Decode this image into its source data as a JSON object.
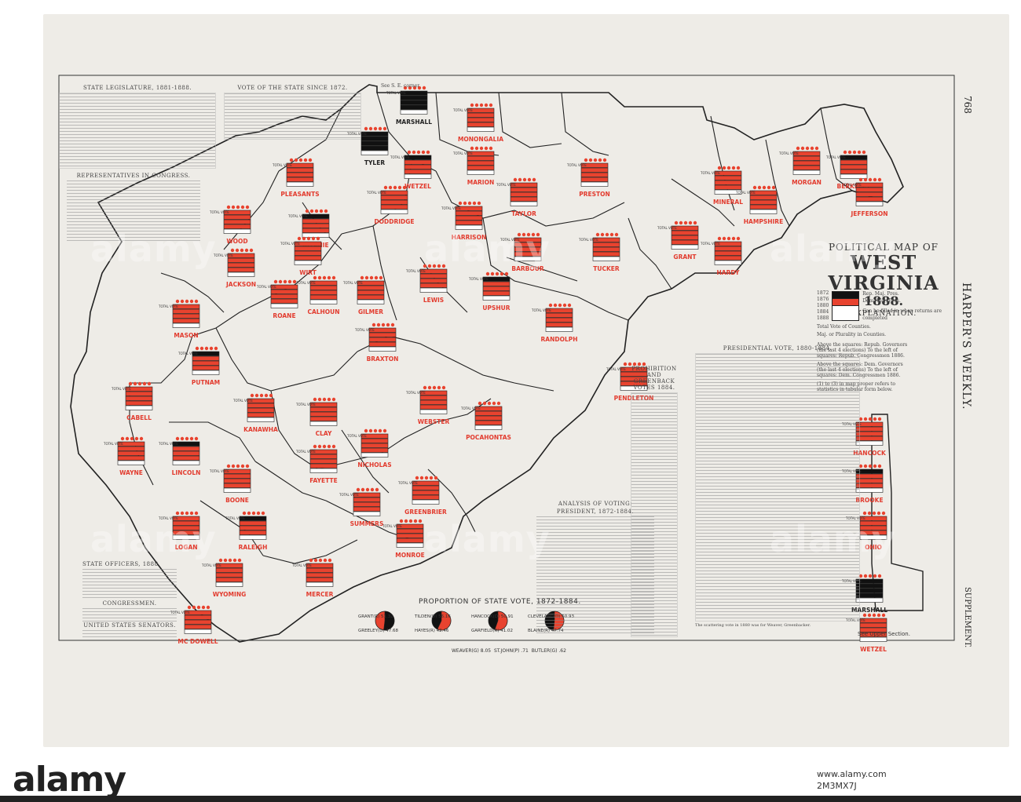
{
  "sheet": {
    "page_number": "768",
    "publication": "HARPER'S WEEKLY.",
    "supplement": "SUPPLEMENT."
  },
  "title": {
    "pre": "POLITICAL MAP OF",
    "main": "WEST VIRGINIA",
    "year": "1888.",
    "explanation": "EXPLANATION."
  },
  "legend": {
    "rows": [
      "1872",
      "1876",
      "1880",
      "1884",
      "1888"
    ],
    "rep_label": "Rep. Maj. Pres.",
    "dem_label": "Dem. Maj. Pres.",
    "blank_label": "Can be filled in when returns are completed",
    "total_label": "Total Vote of Counties.",
    "maj_label": "Maj. or Plurality in Counties.",
    "notes": [
      "Above the squares: Repub. Governors (the last 4 elections) To the left of squares: Repub. Congressmen 1886.",
      "Above the squares: Dem. Governors (the last 4 elections) To the left of squares: Dem. Congressmen 1886.",
      "(1) to (3) in map proper refers to statistics in tabular form below."
    ]
  },
  "tables": {
    "legislature_title": "STATE LEGISLATURE, 1881-1888.",
    "vote_since_title": "VOTE OF THE STATE SINCE 1872.",
    "representatives_title": "REPRESENTATIVES IN CONGRESS.",
    "officers_title": "STATE OFFICERS, 1888.",
    "congressmen_title": "CONGRESSMEN.",
    "senators_title": "UNITED STATES SENATORS.",
    "presidential_title": "PRESIDENTIAL VOTE, 1880-1884.",
    "prohibition_title": "PROHIBITION AND GREENBACK VOTES 1884.",
    "analysis_title": "ANALYSIS OF VOTING:",
    "analysis_sub": "PRESIDENT, 1872-1884.",
    "scattering_note": "The scattering vote in 1880 was for Weaver, Greenbacker.",
    "see_se": "See S. E. corner",
    "see_upper": "See Upper Section."
  },
  "proportion": {
    "title": "PROPORTION OF STATE VOTE, 1872-1884.",
    "pies": [
      {
        "top": "GRANT(R)",
        "top_val": "51.32",
        "bottom": "GREELEY(D)",
        "bottom_val": "47.68"
      },
      {
        "top": "TILDEN(D)",
        "top_val": "56.16",
        "bottom": "HAYES(R)",
        "bottom_val": "42.46"
      },
      {
        "top": "HANCOCK(D)",
        "top_val": "50.91",
        "bottom": "GARFIELD(R)",
        "bottom_val": "41.02"
      },
      {
        "top": "CLEVELAND(D)",
        "top_val": "50.93",
        "bottom": "BLAINE(R)",
        "bottom_val": "47.74"
      }
    ],
    "extra": [
      "WEAVER(G) 8.05",
      "ST.JOHN(P) .71",
      "BUTLER(G) .62"
    ]
  },
  "counties": [
    {
      "name": "MARSHALL",
      "label_color": "#222"
    },
    {
      "name": "MONONGALIA",
      "label_color": "#e23b2e"
    },
    {
      "name": "TYLER",
      "label_color": "#222"
    },
    {
      "name": "WETZEL",
      "label_color": "#e23b2e"
    },
    {
      "name": "MARION",
      "label_color": "#e23b2e"
    },
    {
      "name": "PLEASANTS",
      "label_color": "#e23b2e"
    },
    {
      "name": "PRESTON",
      "label_color": "#e23b2e"
    },
    {
      "name": "TAYLOR",
      "label_color": "#e23b2e"
    },
    {
      "name": "DODDRIDGE",
      "label_color": "#e23b2e"
    },
    {
      "name": "HARRISON",
      "label_color": "#e23b2e"
    },
    {
      "name": "RITCHIE",
      "label_color": "#e23b2e"
    },
    {
      "name": "WOOD",
      "label_color": "#e23b2e"
    },
    {
      "name": "WIRT",
      "label_color": "#e23b2e"
    },
    {
      "name": "JACKSON",
      "label_color": "#e23b2e"
    },
    {
      "name": "BARBOUR",
      "label_color": "#e23b2e"
    },
    {
      "name": "TUCKER",
      "label_color": "#e23b2e"
    },
    {
      "name": "LEWIS",
      "label_color": "#e23b2e"
    },
    {
      "name": "UPSHUR",
      "label_color": "#e23b2e"
    },
    {
      "name": "GILMER",
      "label_color": "#e23b2e"
    },
    {
      "name": "CALHOUN",
      "label_color": "#e23b2e"
    },
    {
      "name": "ROANE",
      "label_color": "#e23b2e"
    },
    {
      "name": "MASON",
      "label_color": "#e23b2e"
    },
    {
      "name": "RANDOLPH",
      "label_color": "#e23b2e"
    },
    {
      "name": "BRAXTON",
      "label_color": "#e23b2e"
    },
    {
      "name": "PUTNAM",
      "label_color": "#e23b2e"
    },
    {
      "name": "CABELL",
      "label_color": "#e23b2e"
    },
    {
      "name": "KANAWHA",
      "label_color": "#e23b2e"
    },
    {
      "name": "CLAY",
      "label_color": "#e23b2e"
    },
    {
      "name": "WEBSTER",
      "label_color": "#e23b2e"
    },
    {
      "name": "PENDLETON",
      "label_color": "#e23b2e"
    },
    {
      "name": "WAYNE",
      "label_color": "#e23b2e"
    },
    {
      "name": "LINCOLN",
      "label_color": "#e23b2e"
    },
    {
      "name": "NICHOLAS",
      "label_color": "#e23b2e"
    },
    {
      "name": "POCAHONTAS",
      "label_color": "#e23b2e"
    },
    {
      "name": "BOONE",
      "label_color": "#e23b2e"
    },
    {
      "name": "FAYETTE",
      "label_color": "#e23b2e"
    },
    {
      "name": "LOGAN",
      "label_color": "#e23b2e"
    },
    {
      "name": "GREENBRIER",
      "label_color": "#e23b2e"
    },
    {
      "name": "RALEIGH",
      "label_color": "#e23b2e"
    },
    {
      "name": "SUMMERS",
      "label_color": "#e23b2e"
    },
    {
      "name": "MONROE",
      "label_color": "#e23b2e"
    },
    {
      "name": "WYOMING",
      "label_color": "#e23b2e"
    },
    {
      "name": "MERCER",
      "label_color": "#e23b2e"
    },
    {
      "name": "MC DOWELL",
      "label_color": "#e23b2e"
    },
    {
      "name": "MORGAN",
      "label_color": "#e23b2e"
    },
    {
      "name": "BERKELEY",
      "label_color": "#e23b2e"
    },
    {
      "name": "MINERAL",
      "label_color": "#e23b2e"
    },
    {
      "name": "HAMPSHIRE",
      "label_color": "#e23b2e"
    },
    {
      "name": "JEFFERSON",
      "label_color": "#e23b2e"
    },
    {
      "name": "GRANT",
      "label_color": "#e23b2e"
    },
    {
      "name": "HARDY",
      "label_color": "#e23b2e"
    },
    {
      "name": "HANCOCK",
      "label_color": "#e23b2e"
    },
    {
      "name": "BROOKE",
      "label_color": "#e23b2e"
    },
    {
      "name": "OHIO",
      "label_color": "#e23b2e"
    },
    {
      "name": "MARSHALL",
      "label_color": "#222"
    },
    {
      "name": "WETZEL",
      "label_color": "#e23b2e"
    }
  ],
  "colors": {
    "rep": "#111111",
    "dem": "#e8432f",
    "paper": "#eeece7",
    "line": "#222222"
  },
  "watermark": {
    "logo": "alamy",
    "url": "www.alamy.com",
    "id": "2M3MX7J"
  }
}
